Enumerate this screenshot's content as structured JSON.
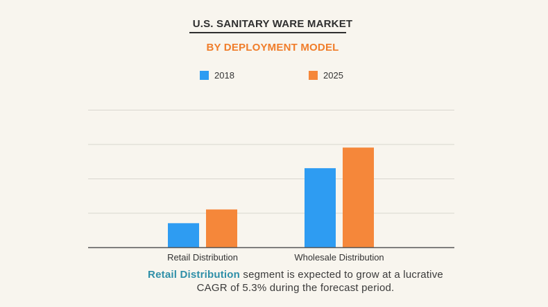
{
  "header": {
    "title": "U.S. SANITARY WARE MARKET",
    "subtitle": "BY DEPLOYMENT MODEL"
  },
  "colors": {
    "series_2018": "#2e9cf2",
    "series_2025": "#f5873a",
    "title": "#2f2f2f",
    "subtitle": "#f07d2a",
    "highlight": "#2f8fa8"
  },
  "chart_data": {
    "type": "bar",
    "title": "",
    "xlabel": "",
    "ylabel": "",
    "categories": [
      "Retail Distribution",
      "Wholesale Distribution"
    ],
    "series": [
      {
        "name": "2018",
        "values": [
          0.7,
          2.3
        ]
      },
      {
        "name": "2025",
        "values": [
          1.1,
          2.9
        ]
      }
    ],
    "ylim": [
      0,
      4
    ],
    "y_gridlines": 4,
    "grid": true,
    "legend": "top-center"
  },
  "footnote": {
    "highlight": "Retail Distribution",
    "line1_rest": " segment is expected to grow at a lucrative",
    "line2": "CAGR of 5.3% during the forecast period."
  }
}
